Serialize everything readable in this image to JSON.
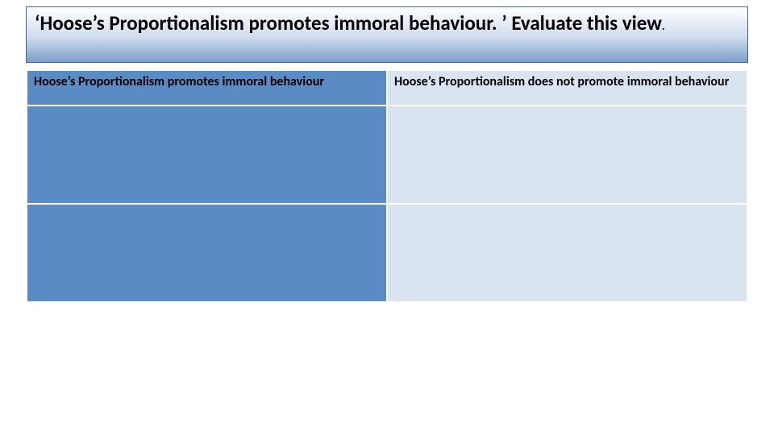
{
  "title": {
    "line": "‘Hoose’s Proportionalism promotes immoral behaviour. ’ Evaluate this view",
    "period": "."
  },
  "table": {
    "type": "table",
    "columns": [
      {
        "label": "Hoose’s Proportionalism promotes immoral behaviour",
        "bg": "#5b8bc4"
      },
      {
        "label": "Hoose’s Proportionalism does not promote immoral behaviour",
        "bg": "#dae3f0"
      }
    ],
    "rows": [
      [
        "",
        ""
      ],
      [
        "",
        ""
      ]
    ],
    "left_col_bg": "#5b8bc4",
    "right_col_bg": "#dae3f0",
    "border_color": "#ffffff",
    "header_fontsize": 16,
    "header_fontweight": 700,
    "text_color": "#000000"
  },
  "styling": {
    "slide_bg": "#ffffff",
    "title_border": "#3d62a0",
    "title_gradient_top": "#ffffff",
    "title_gradient_mid": "#cfdced",
    "title_gradient_bottom": "#7a9fc9",
    "title_fontsize_main": 25,
    "title_fontsize_period": 14,
    "title_fontweight": 700,
    "title_color": "#000000",
    "font_family": "Calibri"
  }
}
